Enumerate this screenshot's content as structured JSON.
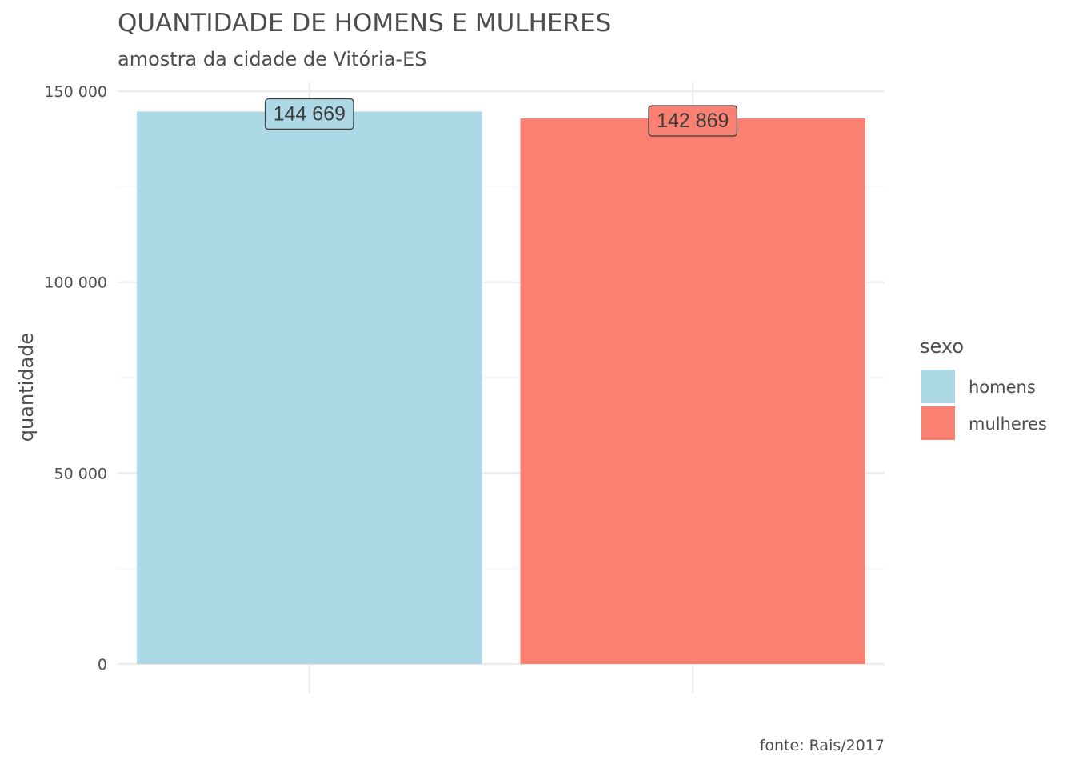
{
  "chart_data": {
    "type": "bar",
    "title": "QUANTIDADE DE HOMENS E MULHERES",
    "subtitle": "amostra da cidade de Vitória-ES",
    "caption": "fonte: Rais/2017",
    "xlabel": "",
    "ylabel": "quantidade",
    "categories": [
      "homens",
      "mulheres"
    ],
    "values": [
      144669,
      142869
    ],
    "data_labels": [
      "144 669",
      "142 869"
    ],
    "colors": [
      "#add8e6",
      "#fa8072"
    ],
    "ylim": [
      0,
      150000
    ],
    "y_ticks": [
      0,
      50000,
      100000,
      150000
    ],
    "y_tick_labels": [
      "0",
      "50 000",
      "100 000",
      "150 000"
    ],
    "grid": true,
    "legend": {
      "title": "sexo",
      "position": "right",
      "entries": [
        "homens",
        "mulheres"
      ]
    }
  }
}
